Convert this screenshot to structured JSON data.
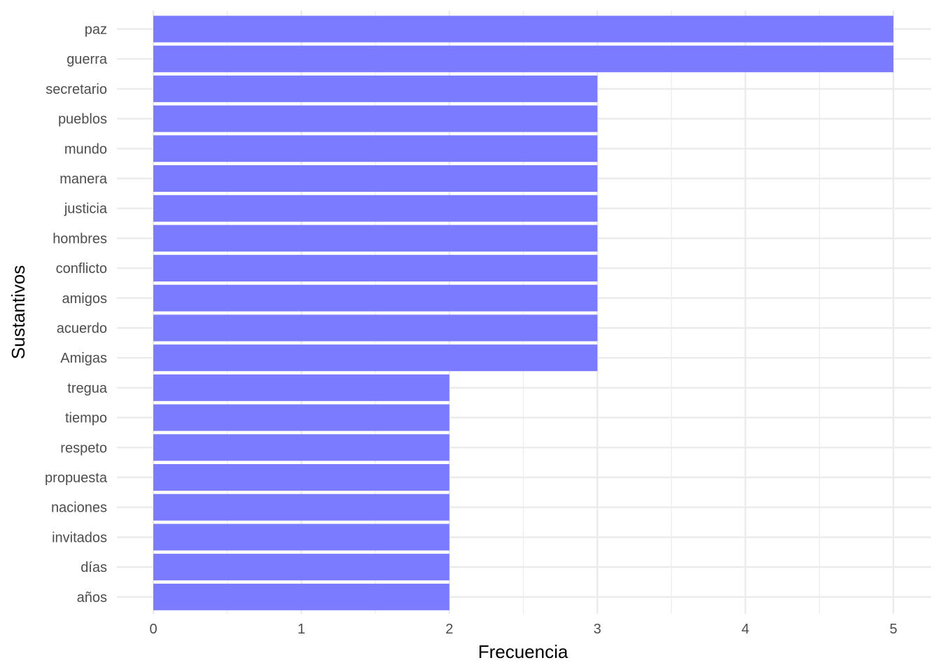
{
  "chart_data": {
    "type": "bar",
    "orientation": "horizontal",
    "title": "",
    "xlabel": "Frecuencia",
    "ylabel": "Sustantivos",
    "categories": [
      "paz",
      "guerra",
      "secretario",
      "pueblos",
      "mundo",
      "manera",
      "justicia",
      "hombres",
      "conflicto",
      "amigos",
      "acuerdo",
      "Amigas",
      "tregua",
      "tiempo",
      "respeto",
      "propuesta",
      "naciones",
      "invitados",
      "días",
      "años"
    ],
    "values": [
      5,
      5,
      3,
      3,
      3,
      3,
      3,
      3,
      3,
      3,
      3,
      3,
      2,
      2,
      2,
      2,
      2,
      2,
      2,
      2
    ],
    "xlim": [
      0,
      5
    ],
    "xticks": [
      "0",
      "1",
      "2",
      "3",
      "4",
      "5"
    ],
    "grid": true,
    "bar_color": "#7b7bff",
    "grid_color": "#ebebeb"
  }
}
